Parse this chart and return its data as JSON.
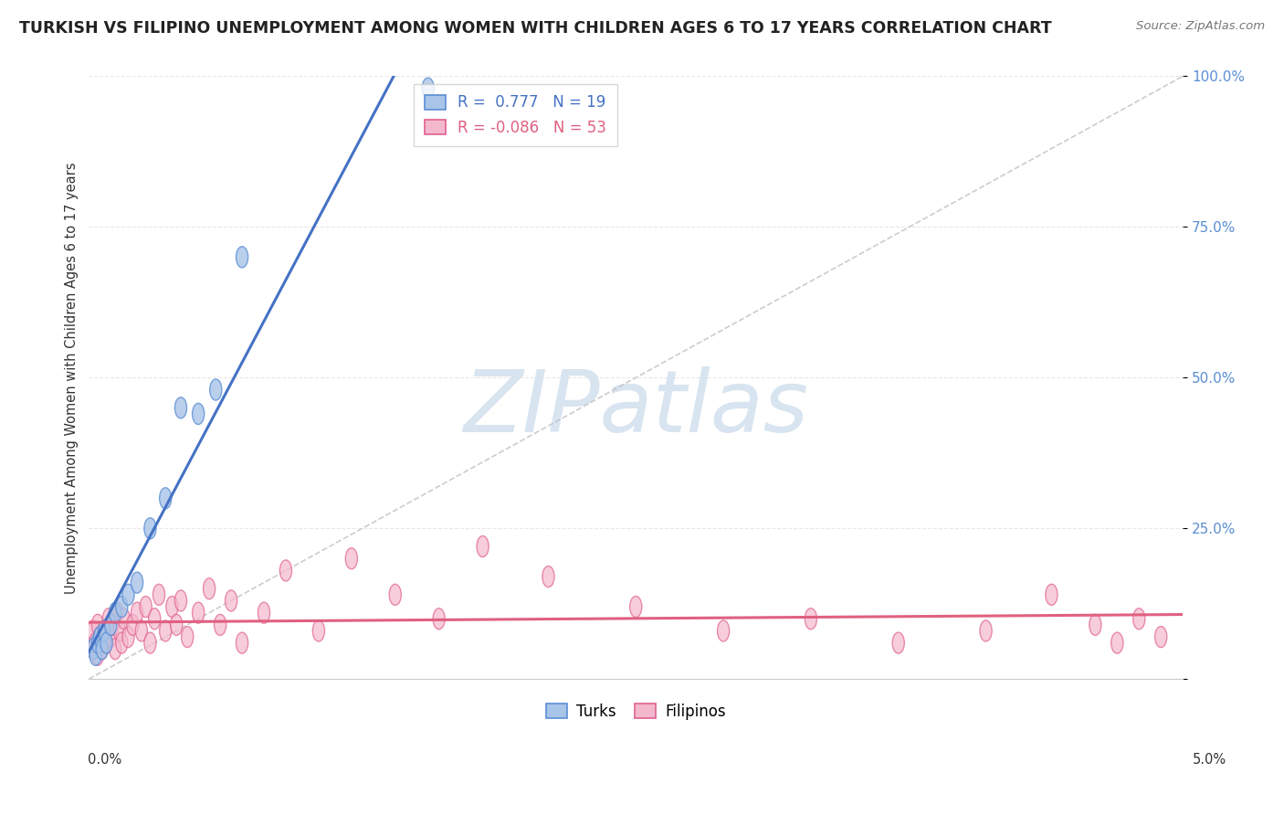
{
  "title": "TURKISH VS FILIPINO UNEMPLOYMENT AMONG WOMEN WITH CHILDREN AGES 6 TO 17 YEARS CORRELATION CHART",
  "source": "Source: ZipAtlas.com",
  "ylabel": "Unemployment Among Women with Children Ages 6 to 17 years",
  "xlim": [
    0.0,
    5.0
  ],
  "ylim": [
    0.0,
    100.0
  ],
  "yticks": [
    0,
    25,
    50,
    75,
    100
  ],
  "ytick_labels": [
    "",
    "25.0%",
    "50.0%",
    "75.0%",
    "100.0%"
  ],
  "legend_turks_r": " 0.777",
  "legend_turks_n": "19",
  "legend_filipinos_r": "-0.086",
  "legend_filipinos_n": "53",
  "turk_fill": "#a8c4e8",
  "turk_edge": "#5b8fd4",
  "filipinos_fill": "#f4b8cc",
  "filipinos_edge": "#e06090",
  "turk_line_color": "#4472c4",
  "filipinos_line_color": "#e06080",
  "ref_line_color": "#c0c0c0",
  "watermark": "ZIPatlas",
  "watermark_color": "#d8e4f0",
  "background_color": "#ffffff",
  "grid_color": "#e8e8e8",
  "turks_x": [
    0.02,
    0.03,
    0.04,
    0.05,
    0.06,
    0.07,
    0.08,
    0.1,
    0.12,
    0.15,
    0.18,
    0.22,
    0.28,
    0.35,
    0.42,
    0.5,
    0.58,
    0.7,
    1.55
  ],
  "turks_y": [
    5,
    4,
    6,
    7,
    5,
    8,
    6,
    9,
    11,
    12,
    14,
    16,
    25,
    30,
    45,
    44,
    48,
    70,
    98
  ],
  "filipinos_x": [
    0.02,
    0.02,
    0.03,
    0.04,
    0.04,
    0.05,
    0.06,
    0.07,
    0.08,
    0.09,
    0.1,
    0.11,
    0.12,
    0.13,
    0.14,
    0.15,
    0.16,
    0.18,
    0.2,
    0.22,
    0.24,
    0.26,
    0.28,
    0.3,
    0.32,
    0.35,
    0.38,
    0.4,
    0.42,
    0.45,
    0.5,
    0.55,
    0.6,
    0.65,
    0.7,
    0.8,
    0.9,
    1.05,
    1.2,
    1.4,
    1.6,
    1.8,
    2.1,
    2.5,
    2.9,
    3.3,
    3.7,
    4.1,
    4.4,
    4.6,
    4.7,
    4.8,
    4.9
  ],
  "filipinos_y": [
    5,
    8,
    6,
    4,
    9,
    7,
    5,
    8,
    6,
    10,
    7,
    9,
    5,
    11,
    8,
    6,
    10,
    7,
    9,
    11,
    8,
    12,
    6,
    10,
    14,
    8,
    12,
    9,
    13,
    7,
    11,
    15,
    9,
    13,
    6,
    11,
    18,
    8,
    20,
    14,
    10,
    22,
    17,
    12,
    8,
    10,
    6,
    8,
    14,
    9,
    6,
    10,
    7
  ]
}
